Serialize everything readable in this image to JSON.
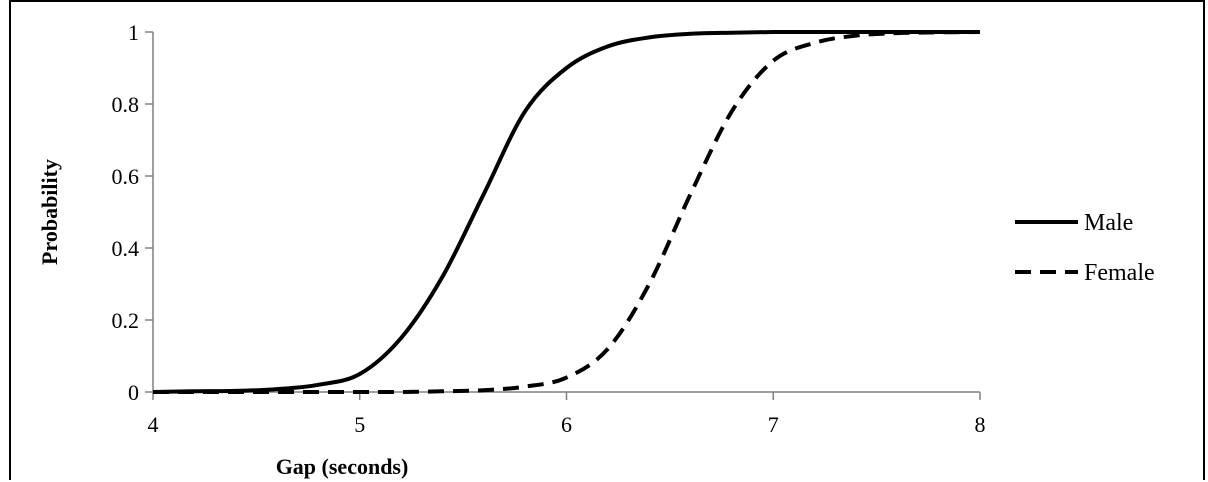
{
  "chart_data": {
    "type": "line",
    "title": "",
    "xlabel": "Gap (seconds)",
    "ylabel": "Probability",
    "xlim": [
      4,
      8
    ],
    "ylim": [
      0,
      1
    ],
    "x_ticks": [
      "4",
      "5",
      "6",
      "7",
      "8"
    ],
    "y_ticks": [
      "0",
      "0.2",
      "0.4",
      "0.6",
      "0.8",
      "1"
    ],
    "grid": false,
    "legend_position": "right",
    "x": [
      4.0,
      4.2,
      4.4,
      4.6,
      4.8,
      5.0,
      5.2,
      5.4,
      5.6,
      5.8,
      6.0,
      6.2,
      6.4,
      6.6,
      6.8,
      7.0,
      7.2,
      7.4,
      7.6,
      7.8,
      8.0
    ],
    "series": [
      {
        "name": "Male",
        "style": "solid",
        "values": [
          0.0,
          0.002,
          0.003,
          0.008,
          0.02,
          0.05,
          0.15,
          0.32,
          0.55,
          0.78,
          0.9,
          0.96,
          0.985,
          0.995,
          0.998,
          1.0,
          1.0,
          1.0,
          1.0,
          1.0,
          1.0
        ]
      },
      {
        "name": "Female",
        "style": "dashed",
        "values": [
          0.0,
          0.0,
          0.0,
          0.0,
          0.0,
          0.0,
          0.0,
          0.002,
          0.005,
          0.015,
          0.04,
          0.12,
          0.3,
          0.55,
          0.78,
          0.92,
          0.97,
          0.99,
          0.997,
          0.999,
          1.0
        ]
      }
    ]
  }
}
